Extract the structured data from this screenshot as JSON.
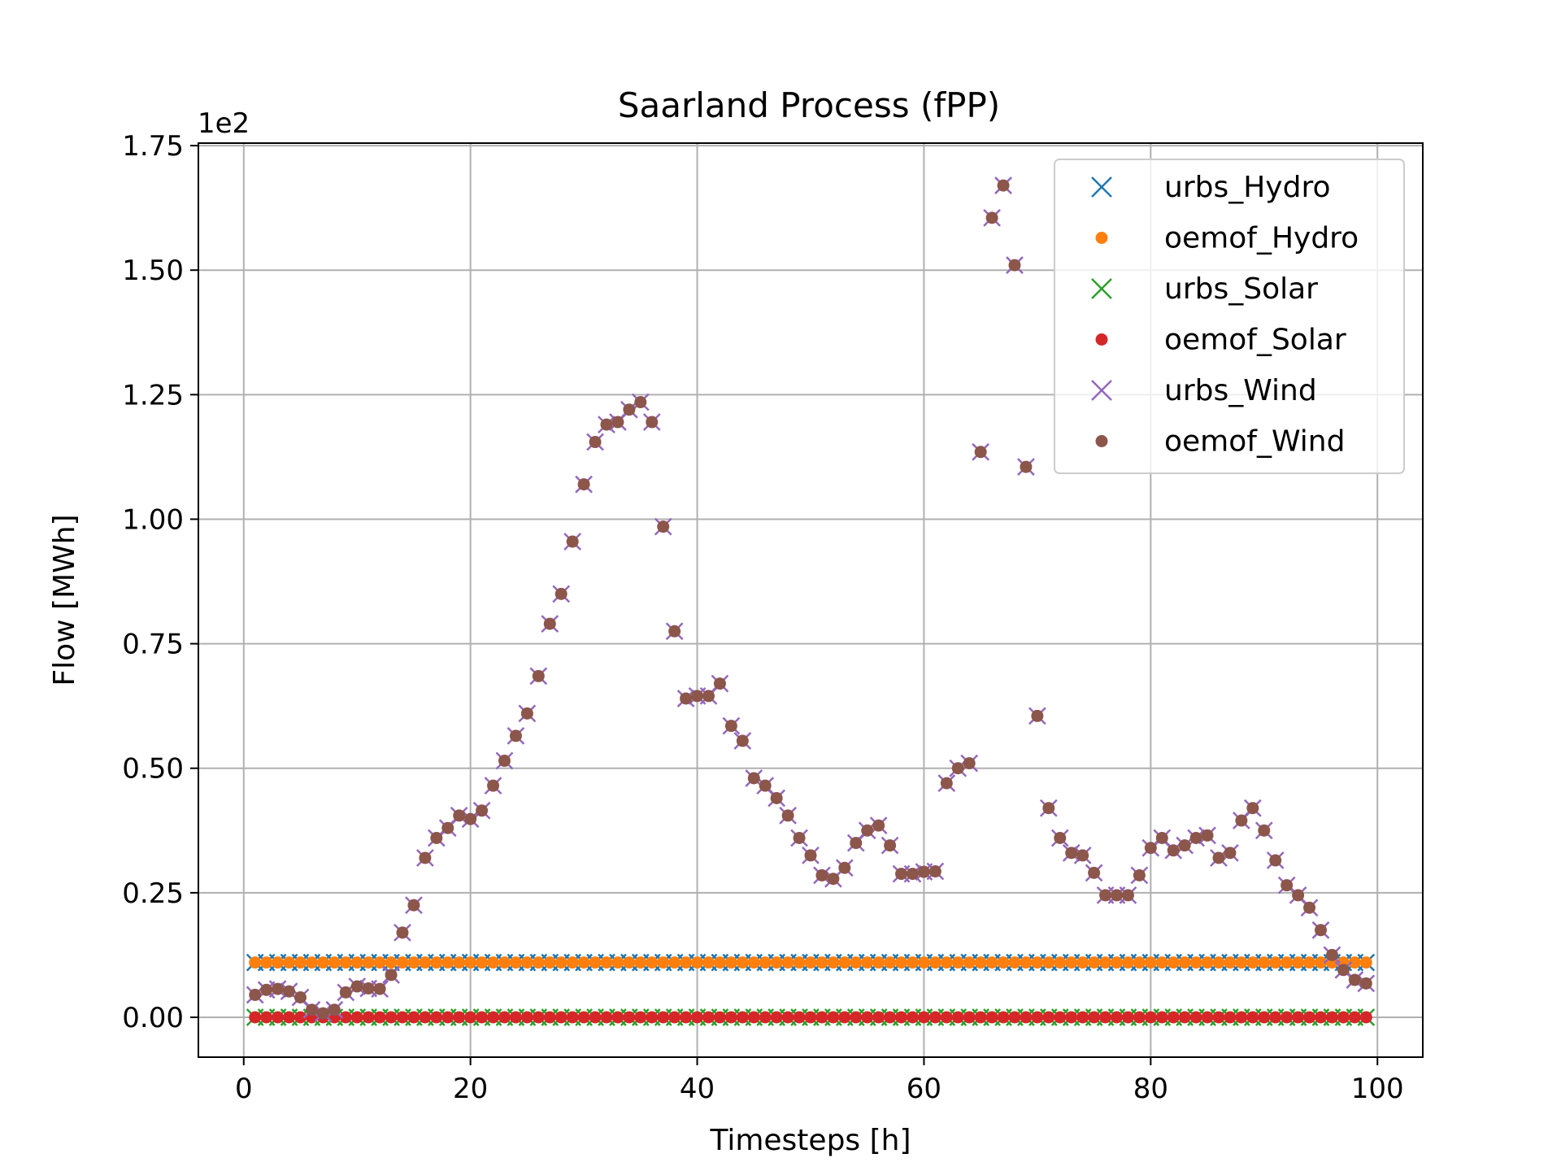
{
  "chart_data": {
    "type": "scatter",
    "title": "Saarland Process (fPP)",
    "xlabel": "Timesteps [h]",
    "ylabel": "Flow [MWh]",
    "y_offset_label": "1e2",
    "xlim": [
      -4,
      104
    ],
    "ylim": [
      -0.08,
      1.755
    ],
    "xticks": [
      0,
      20,
      40,
      60,
      80,
      100
    ],
    "yticks": [
      0.0,
      0.25,
      0.5,
      0.75,
      1.0,
      1.25,
      1.5,
      1.75
    ],
    "xtick_labels": [
      "0",
      "20",
      "40",
      "60",
      "80",
      "100"
    ],
    "ytick_labels": [
      "0.00",
      "0.25",
      "0.50",
      "0.75",
      "1.00",
      "1.25",
      "1.50",
      "1.75"
    ],
    "grid": true,
    "legend_position": "top-right",
    "x": [
      1,
      2,
      3,
      4,
      5,
      6,
      7,
      8,
      9,
      10,
      11,
      12,
      13,
      14,
      15,
      16,
      17,
      18,
      19,
      20,
      21,
      22,
      23,
      24,
      25,
      26,
      27,
      28,
      29,
      30,
      31,
      32,
      33,
      34,
      35,
      36,
      37,
      38,
      39,
      40,
      41,
      42,
      43,
      44,
      45,
      46,
      47,
      48,
      49,
      50,
      51,
      52,
      53,
      54,
      55,
      56,
      57,
      58,
      59,
      60,
      61,
      62,
      63,
      64,
      65,
      66,
      67,
      68,
      69,
      70,
      71,
      72,
      73,
      74,
      75,
      76,
      77,
      78,
      79,
      80,
      81,
      82,
      83,
      84,
      85,
      86,
      87,
      88,
      89,
      90,
      91,
      92,
      93,
      94,
      95,
      96,
      97,
      98,
      99
    ],
    "series": [
      {
        "name": "urbs_Hydro",
        "marker": "x",
        "color": "#1f77b4",
        "values": [
          0.11,
          0.11,
          0.11,
          0.11,
          0.11,
          0.11,
          0.11,
          0.11,
          0.11,
          0.11,
          0.11,
          0.11,
          0.11,
          0.11,
          0.11,
          0.11,
          0.11,
          0.11,
          0.11,
          0.11,
          0.11,
          0.11,
          0.11,
          0.11,
          0.11,
          0.11,
          0.11,
          0.11,
          0.11,
          0.11,
          0.11,
          0.11,
          0.11,
          0.11,
          0.11,
          0.11,
          0.11,
          0.11,
          0.11,
          0.11,
          0.11,
          0.11,
          0.11,
          0.11,
          0.11,
          0.11,
          0.11,
          0.11,
          0.11,
          0.11,
          0.11,
          0.11,
          0.11,
          0.11,
          0.11,
          0.11,
          0.11,
          0.11,
          0.11,
          0.11,
          0.11,
          0.11,
          0.11,
          0.11,
          0.11,
          0.11,
          0.11,
          0.11,
          0.11,
          0.11,
          0.11,
          0.11,
          0.11,
          0.11,
          0.11,
          0.11,
          0.11,
          0.11,
          0.11,
          0.11,
          0.11,
          0.11,
          0.11,
          0.11,
          0.11,
          0.11,
          0.11,
          0.11,
          0.11,
          0.11,
          0.11,
          0.11,
          0.11,
          0.11,
          0.11,
          0.11,
          0.11,
          0.11,
          0.11
        ]
      },
      {
        "name": "oemof_Hydro",
        "marker": "dot",
        "color": "#ff7f0e",
        "values": [
          0.11,
          0.11,
          0.11,
          0.11,
          0.11,
          0.11,
          0.11,
          0.11,
          0.11,
          0.11,
          0.11,
          0.11,
          0.11,
          0.11,
          0.11,
          0.11,
          0.11,
          0.11,
          0.11,
          0.11,
          0.11,
          0.11,
          0.11,
          0.11,
          0.11,
          0.11,
          0.11,
          0.11,
          0.11,
          0.11,
          0.11,
          0.11,
          0.11,
          0.11,
          0.11,
          0.11,
          0.11,
          0.11,
          0.11,
          0.11,
          0.11,
          0.11,
          0.11,
          0.11,
          0.11,
          0.11,
          0.11,
          0.11,
          0.11,
          0.11,
          0.11,
          0.11,
          0.11,
          0.11,
          0.11,
          0.11,
          0.11,
          0.11,
          0.11,
          0.11,
          0.11,
          0.11,
          0.11,
          0.11,
          0.11,
          0.11,
          0.11,
          0.11,
          0.11,
          0.11,
          0.11,
          0.11,
          0.11,
          0.11,
          0.11,
          0.11,
          0.11,
          0.11,
          0.11,
          0.11,
          0.11,
          0.11,
          0.11,
          0.11,
          0.11,
          0.11,
          0.11,
          0.11,
          0.11,
          0.11,
          0.11,
          0.11,
          0.11,
          0.11,
          0.11,
          0.11,
          0.11,
          0.11,
          0.11
        ]
      },
      {
        "name": "urbs_Solar",
        "marker": "x",
        "color": "#2ca02c",
        "values": [
          0,
          0,
          0,
          0,
          0,
          0,
          0,
          0,
          0,
          0,
          0,
          0,
          0,
          0,
          0,
          0,
          0,
          0,
          0,
          0,
          0,
          0,
          0,
          0,
          0,
          0,
          0,
          0,
          0,
          0,
          0,
          0,
          0,
          0,
          0,
          0,
          0,
          0,
          0,
          0,
          0,
          0,
          0,
          0,
          0,
          0,
          0,
          0,
          0,
          0,
          0,
          0,
          0,
          0,
          0,
          0,
          0,
          0,
          0,
          0,
          0,
          0,
          0,
          0,
          0,
          0,
          0,
          0,
          0,
          0,
          0,
          0,
          0,
          0,
          0,
          0,
          0,
          0,
          0,
          0,
          0,
          0,
          0,
          0,
          0,
          0,
          0,
          0,
          0,
          0,
          0,
          0,
          0,
          0,
          0,
          0,
          0,
          0,
          0
        ]
      },
      {
        "name": "oemof_Solar",
        "marker": "dot",
        "color": "#d62728",
        "values": [
          0,
          0,
          0,
          0,
          0,
          0,
          0,
          0,
          0,
          0,
          0,
          0,
          0,
          0,
          0,
          0,
          0,
          0,
          0,
          0,
          0,
          0,
          0,
          0,
          0,
          0,
          0,
          0,
          0,
          0,
          0,
          0,
          0,
          0,
          0,
          0,
          0,
          0,
          0,
          0,
          0,
          0,
          0,
          0,
          0,
          0,
          0,
          0,
          0,
          0,
          0,
          0,
          0,
          0,
          0,
          0,
          0,
          0,
          0,
          0,
          0,
          0,
          0,
          0,
          0,
          0,
          0,
          0,
          0,
          0,
          0,
          0,
          0,
          0,
          0,
          0,
          0,
          0,
          0,
          0,
          0,
          0,
          0,
          0,
          0,
          0,
          0,
          0,
          0,
          0,
          0,
          0,
          0,
          0,
          0,
          0,
          0,
          0,
          0
        ]
      },
      {
        "name": "urbs_Wind",
        "marker": "x",
        "color": "#9467bd",
        "values": [
          0.045,
          0.055,
          0.057,
          0.052,
          0.04,
          0.015,
          0.008,
          0.015,
          0.05,
          0.062,
          0.058,
          0.057,
          0.085,
          0.17,
          0.225,
          0.32,
          0.36,
          0.38,
          0.405,
          0.398,
          0.415,
          0.465,
          0.515,
          0.565,
          0.61,
          0.685,
          0.79,
          0.85,
          0.955,
          1.07,
          1.155,
          1.19,
          1.195,
          1.22,
          1.235,
          1.195,
          0.985,
          0.775,
          0.64,
          0.645,
          0.645,
          0.67,
          0.585,
          0.555,
          0.48,
          0.465,
          0.44,
          0.405,
          0.36,
          0.325,
          0.285,
          0.278,
          0.3,
          0.35,
          0.375,
          0.385,
          0.345,
          0.288,
          0.288,
          0.292,
          0.293,
          0.47,
          0.5,
          0.51,
          1.135,
          1.605,
          1.67,
          1.51,
          1.105,
          0.605,
          0.42,
          0.36,
          0.33,
          0.325,
          0.29,
          0.245,
          0.245,
          0.245,
          0.285,
          0.34,
          0.36,
          0.335,
          0.345,
          0.36,
          0.365,
          0.32,
          0.33,
          0.395,
          0.42,
          0.375,
          0.315,
          0.265,
          0.245,
          0.22,
          0.175,
          0.125,
          0.095,
          0.075,
          0.068
        ]
      },
      {
        "name": "oemof_Wind",
        "marker": "dot",
        "color": "#8c564b",
        "values": [
          0.045,
          0.055,
          0.057,
          0.052,
          0.04,
          0.015,
          0.008,
          0.015,
          0.05,
          0.062,
          0.058,
          0.057,
          0.085,
          0.17,
          0.225,
          0.32,
          0.36,
          0.38,
          0.405,
          0.398,
          0.415,
          0.465,
          0.515,
          0.565,
          0.61,
          0.685,
          0.79,
          0.85,
          0.955,
          1.07,
          1.155,
          1.19,
          1.195,
          1.22,
          1.235,
          1.195,
          0.985,
          0.775,
          0.64,
          0.645,
          0.645,
          0.67,
          0.585,
          0.555,
          0.48,
          0.465,
          0.44,
          0.405,
          0.36,
          0.325,
          0.285,
          0.278,
          0.3,
          0.35,
          0.375,
          0.385,
          0.345,
          0.288,
          0.288,
          0.292,
          0.293,
          0.47,
          0.5,
          0.51,
          1.135,
          1.605,
          1.67,
          1.51,
          1.105,
          0.605,
          0.42,
          0.36,
          0.33,
          0.325,
          0.29,
          0.245,
          0.245,
          0.245,
          0.285,
          0.34,
          0.36,
          0.335,
          0.345,
          0.36,
          0.365,
          0.32,
          0.33,
          0.395,
          0.42,
          0.375,
          0.315,
          0.265,
          0.245,
          0.22,
          0.175,
          0.125,
          0.095,
          0.075,
          0.068
        ]
      }
    ]
  }
}
